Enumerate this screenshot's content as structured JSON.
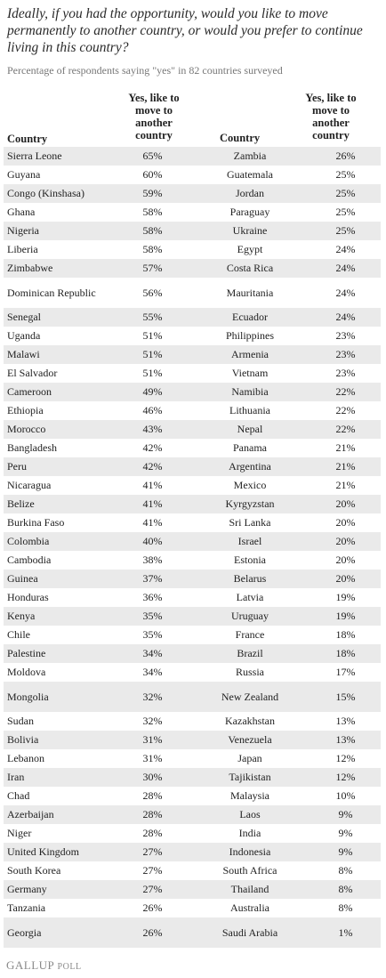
{
  "title": "Ideally, if you had the opportunity, would you like to move permanently to another country, or would you prefer to continue living in this country?",
  "subtitle": "Percentage of respondents saying \"yes\" in 82 countries surveyed",
  "headers": {
    "country": "Country",
    "pct": "Yes, like to move to another country"
  },
  "rows": [
    {
      "c1": "Sierra Leone",
      "p1": "65%",
      "c2": "Zambia",
      "p2": "26%"
    },
    {
      "c1": "Guyana",
      "p1": "60%",
      "c2": "Guatemala",
      "p2": "25%"
    },
    {
      "c1": "Congo (Kinshasa)",
      "p1": "59%",
      "c2": "Jordan",
      "p2": "25%"
    },
    {
      "c1": "Ghana",
      "p1": "58%",
      "c2": "Paraguay",
      "p2": "25%"
    },
    {
      "c1": "Nigeria",
      "p1": "58%",
      "c2": "Ukraine",
      "p2": "25%"
    },
    {
      "c1": "Liberia",
      "p1": "58%",
      "c2": "Egypt",
      "p2": "24%"
    },
    {
      "c1": "Zimbabwe",
      "p1": "57%",
      "c2": "Costa Rica",
      "p2": "24%"
    },
    {
      "c1": "Dominican Republic",
      "p1": "56%",
      "c2": "Mauritania",
      "p2": "24%"
    },
    {
      "c1": "Senegal",
      "p1": "55%",
      "c2": "Ecuador",
      "p2": "24%"
    },
    {
      "c1": "Uganda",
      "p1": "51%",
      "c2": "Philippines",
      "p2": "23%"
    },
    {
      "c1": "Malawi",
      "p1": "51%",
      "c2": "Armenia",
      "p2": "23%"
    },
    {
      "c1": "El Salvador",
      "p1": "51%",
      "c2": "Vietnam",
      "p2": "23%"
    },
    {
      "c1": "Cameroon",
      "p1": "49%",
      "c2": "Namibia",
      "p2": "22%"
    },
    {
      "c1": "Ethiopia",
      "p1": "46%",
      "c2": "Lithuania",
      "p2": "22%"
    },
    {
      "c1": "Morocco",
      "p1": "43%",
      "c2": "Nepal",
      "p2": "22%"
    },
    {
      "c1": "Bangladesh",
      "p1": "42%",
      "c2": "Panama",
      "p2": "21%"
    },
    {
      "c1": "Peru",
      "p1": "42%",
      "c2": "Argentina",
      "p2": "21%"
    },
    {
      "c1": "Nicaragua",
      "p1": "41%",
      "c2": "Mexico",
      "p2": "21%"
    },
    {
      "c1": "Belize",
      "p1": "41%",
      "c2": "Kyrgyzstan",
      "p2": "20%"
    },
    {
      "c1": "Burkina Faso",
      "p1": "41%",
      "c2": "Sri Lanka",
      "p2": "20%"
    },
    {
      "c1": "Colombia",
      "p1": "40%",
      "c2": "Israel",
      "p2": "20%"
    },
    {
      "c1": "Cambodia",
      "p1": "38%",
      "c2": "Estonia",
      "p2": "20%"
    },
    {
      "c1": "Guinea",
      "p1": "37%",
      "c2": "Belarus",
      "p2": "20%"
    },
    {
      "c1": "Honduras",
      "p1": "36%",
      "c2": "Latvia",
      "p2": "19%"
    },
    {
      "c1": "Kenya",
      "p1": "35%",
      "c2": "Uruguay",
      "p2": "19%"
    },
    {
      "c1": "Chile",
      "p1": "35%",
      "c2": "France",
      "p2": "18%"
    },
    {
      "c1": "Palestine",
      "p1": "34%",
      "c2": "Brazil",
      "p2": "18%"
    },
    {
      "c1": "Moldova",
      "p1": "34%",
      "c2": "Russia",
      "p2": "17%"
    },
    {
      "c1": "Mongolia",
      "p1": "32%",
      "c2": "New Zealand",
      "p2": "15%"
    },
    {
      "c1": "Sudan",
      "p1": "32%",
      "c2": "Kazakhstan",
      "p2": "13%"
    },
    {
      "c1": "Bolivia",
      "p1": "31%",
      "c2": "Venezuela",
      "p2": "13%"
    },
    {
      "c1": "Lebanon",
      "p1": "31%",
      "c2": "Japan",
      "p2": "12%"
    },
    {
      "c1": "Iran",
      "p1": "30%",
      "c2": "Tajikistan",
      "p2": "12%"
    },
    {
      "c1": "Chad",
      "p1": "28%",
      "c2": "Malaysia",
      "p2": "10%"
    },
    {
      "c1": "Azerbaijan",
      "p1": "28%",
      "c2": "Laos",
      "p2": "9%"
    },
    {
      "c1": "Niger",
      "p1": "28%",
      "c2": "India",
      "p2": "9%"
    },
    {
      "c1": "United Kingdom",
      "p1": "27%",
      "c2": "Indonesia",
      "p2": "9%"
    },
    {
      "c1": "South Korea",
      "p1": "27%",
      "c2": "South Africa",
      "p2": "8%"
    },
    {
      "c1": "Germany",
      "p1": "27%",
      "c2": "Thailand",
      "p2": "8%"
    },
    {
      "c1": "Tanzania",
      "p1": "26%",
      "c2": "Australia",
      "p2": "8%"
    },
    {
      "c1": "Georgia",
      "p1": "26%",
      "c2": "Saudi Arabia",
      "p2": "1%"
    }
  ],
  "footer": {
    "brand": "GALLUP",
    "poll": "POLL"
  }
}
